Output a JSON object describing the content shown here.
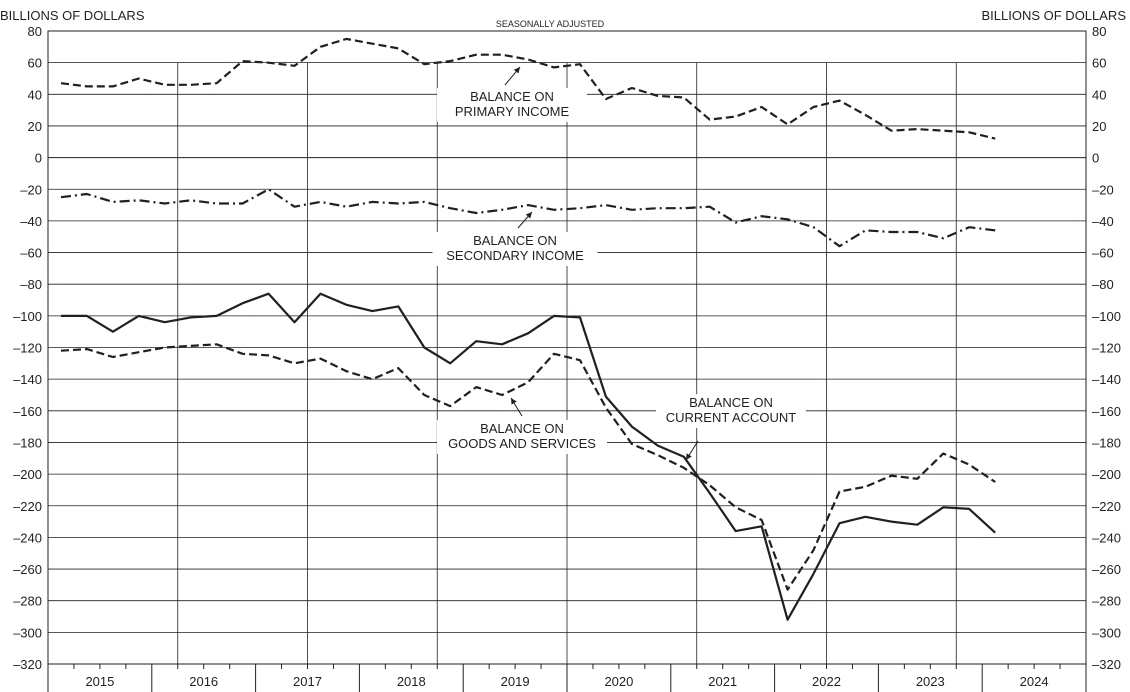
{
  "chart_data": {
    "type": "line",
    "subtitle": "SEASONALLY ADJUSTED",
    "ylabel_left": "BILLIONS OF DOLLARS",
    "ylabel_right": "BILLIONS OF DOLLARS",
    "ylim": [
      -320,
      80
    ],
    "yticks": [
      80,
      60,
      40,
      20,
      0,
      -20,
      -40,
      -60,
      -80,
      -100,
      -120,
      -140,
      -160,
      -180,
      -200,
      -220,
      -240,
      -260,
      -280,
      -300,
      -320
    ],
    "ytick_labels": [
      "80",
      "60",
      "40",
      "20",
      "0",
      "–20",
      "–40",
      "–60",
      "–80",
      "–100",
      "–120",
      "–140",
      "–160",
      "–180",
      "–200",
      "–220",
      "–240",
      "–260",
      "–280",
      "–300",
      "–320"
    ],
    "years": [
      "2015",
      "2016",
      "2017",
      "2018",
      "2019",
      "2020",
      "2021",
      "2022",
      "2023",
      "2024"
    ],
    "quarters": [
      "2015 Q1",
      "2015 Q2",
      "2015 Q3",
      "2015 Q4",
      "2016 Q1",
      "2016 Q2",
      "2016 Q3",
      "2016 Q4",
      "2017 Q1",
      "2017 Q2",
      "2017 Q3",
      "2017 Q4",
      "2018 Q1",
      "2018 Q2",
      "2018 Q3",
      "2018 Q4",
      "2019 Q1",
      "2019 Q2",
      "2019 Q3",
      "2019 Q4",
      "2020 Q1",
      "2020 Q2",
      "2020 Q3",
      "2020 Q4",
      "2021 Q1",
      "2021 Q2",
      "2021 Q3",
      "2021 Q4",
      "2022 Q1",
      "2022 Q2",
      "2022 Q3",
      "2022 Q4",
      "2023 Q1",
      "2023 Q2",
      "2023 Q3",
      "2023 Q4",
      "2024 Q1"
    ],
    "grid": true,
    "series": [
      {
        "name": "BALANCE ON PRIMARY INCOME",
        "style": "dashed",
        "values": [
          47,
          45,
          45,
          50,
          46,
          46,
          47,
          61,
          60,
          58,
          70,
          75,
          72,
          69,
          59,
          61,
          65,
          65,
          62,
          57,
          59,
          37,
          44,
          39,
          38,
          24,
          26,
          32,
          21,
          32,
          36,
          27,
          17,
          18,
          17,
          16,
          12
        ]
      },
      {
        "name": "BALANCE ON SECONDARY INCOME",
        "style": "dashdot",
        "values": [
          -25,
          -23,
          -28,
          -27,
          -29,
          -27,
          -29,
          -29,
          -20,
          -31,
          -28,
          -31,
          -28,
          -29,
          -28,
          -32,
          -35,
          -33,
          -30,
          -33,
          -32,
          -30,
          -33,
          -32,
          -32,
          -31,
          -41,
          -37,
          -39,
          -44,
          -56,
          -46,
          -47,
          -47,
          -51,
          -44,
          -46
        ]
      },
      {
        "name": "BALANCE ON GOODS AND SERVICES",
        "style": "dashed",
        "values": [
          -122,
          -121,
          -126,
          -123,
          -120,
          -119,
          -118,
          -124,
          -125,
          -130,
          -127,
          -135,
          -140,
          -133,
          -150,
          -157,
          -145,
          -150,
          -142,
          -124,
          -128,
          -158,
          -181,
          -188,
          -196,
          -207,
          -221,
          -229,
          -273,
          -248,
          -211,
          -208,
          -201,
          -203,
          -187,
          -194,
          -205
        ]
      },
      {
        "name": "BALANCE ON CURRENT ACCOUNT",
        "style": "solid",
        "values": [
          -100,
          -100,
          -110,
          -100,
          -104,
          -101,
          -100,
          -92,
          -86,
          -104,
          -86,
          -93,
          -97,
          -94,
          -120,
          -130,
          -116,
          -118,
          -111,
          -100,
          -101,
          -151,
          -170,
          -182,
          -189,
          -212,
          -236,
          -233,
          -292,
          -263,
          -231,
          -227,
          -230,
          -232,
          -221,
          -222,
          -237
        ]
      }
    ],
    "annotations": {
      "primary": [
        "BALANCE ON",
        "PRIMARY INCOME"
      ],
      "secondary": [
        "BALANCE ON",
        "SECONDARY INCOME"
      ],
      "goods": [
        "BALANCE ON",
        "GOODS AND SERVICES"
      ],
      "current": [
        "BALANCE ON",
        "CURRENT ACCOUNT"
      ]
    }
  }
}
